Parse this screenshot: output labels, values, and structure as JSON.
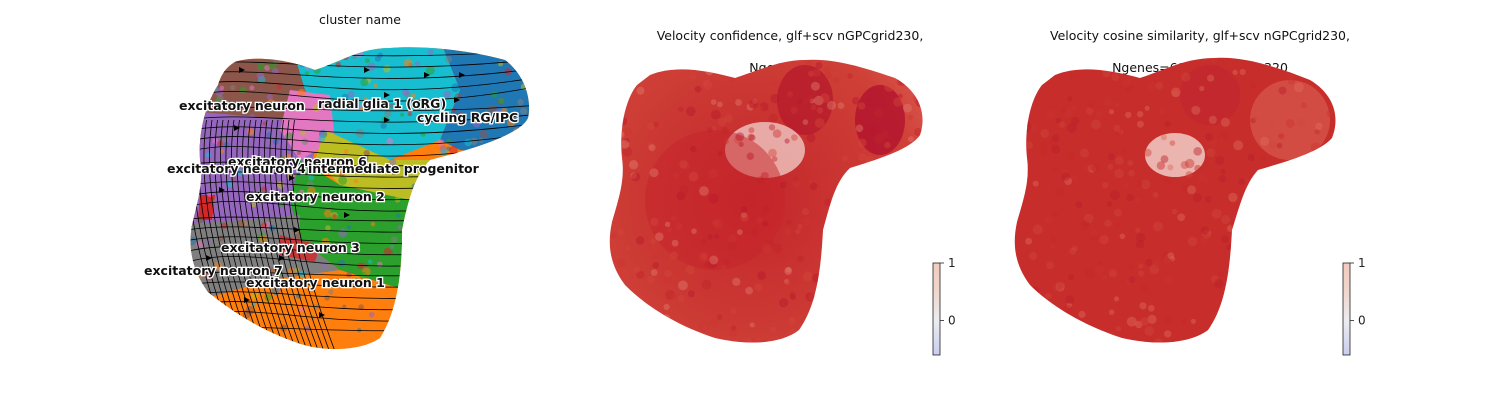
{
  "chart_data": [
    {
      "type": "scatter",
      "subtype": "umap-embedding-with-streamlines",
      "title": "cluster name",
      "legend": "on-data",
      "grid": false,
      "clusters": [
        {
          "label": "radial glia 1 (oRG)",
          "color": "#17becf"
        },
        {
          "label": "cycling RG/IPC",
          "color": "#1f77b4"
        },
        {
          "label": "excitatory neuron",
          "color": "#8c564b"
        },
        {
          "label": "excitatory neuron 6",
          "color": "#e377c2"
        },
        {
          "label": "excitatory neuron 4",
          "color": "#9467bd"
        },
        {
          "label": "intermediate progenitor",
          "color": "#bcbd22"
        },
        {
          "label": "excitatory neuron 2",
          "color": "#2ca02c"
        },
        {
          "label": "excitatory neuron 3",
          "color": "#d62728"
        },
        {
          "label": "excitatory neuron 7",
          "color": "#7f7f7f"
        },
        {
          "label": "excitatory neuron 1",
          "color": "#ff7f0e"
        }
      ]
    },
    {
      "type": "scatter",
      "subtype": "umap-embedding-colored-by-value",
      "title_line1": "Velocity confidence, glf+scv nGPCgrid230,",
      "title_line2": "Ngenes=129",
      "colormap": "coolwarm",
      "colorbar": {
        "ticks": [
          "1",
          "0"
        ],
        "range": [
          -0.6,
          1
        ]
      },
      "point_color": "#c9302c"
    },
    {
      "type": "scatter",
      "subtype": "umap-embedding-colored-by-value",
      "title_line1": "Velocity cosine similarity, glf+scv nGPCgrid230,",
      "title_line2": "Ngenes=69, split seed=320",
      "colormap": "coolwarm",
      "colorbar": {
        "ticks": [
          "1",
          "0"
        ],
        "range": [
          -0.6,
          1
        ]
      },
      "point_color": "#c62828"
    }
  ]
}
